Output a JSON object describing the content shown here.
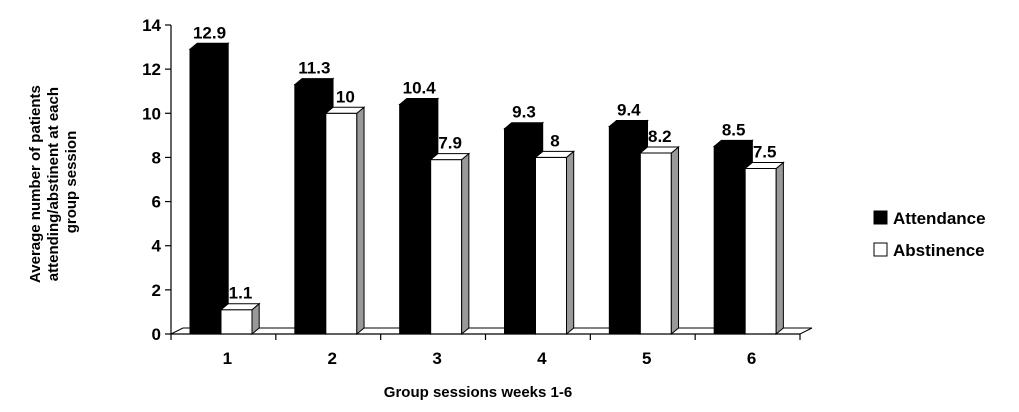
{
  "chart_data": {
    "type": "bar",
    "title": "",
    "xlabel": "Group sessions weeks 1-6",
    "ylabel_lines": [
      "Average number of patients",
      "attending/abstinent at each",
      "group session"
    ],
    "categories": [
      "1",
      "2",
      "3",
      "4",
      "5",
      "6"
    ],
    "ylim": [
      0,
      14
    ],
    "yticks": [
      "0",
      "2",
      "4",
      "6",
      "8",
      "10",
      "12",
      "14"
    ],
    "grid": false,
    "legend_position": "right",
    "series": [
      {
        "name": "Attendance",
        "values": [
          12.9,
          11.3,
          10.4,
          9.3,
          9.4,
          8.5
        ],
        "labels": [
          "12.9",
          "11.3",
          "10.4",
          "9.3",
          "9.4",
          "8.5"
        ],
        "color": "#000000"
      },
      {
        "name": "Abstinence",
        "values": [
          1.1,
          10,
          7.9,
          8,
          8.2,
          7.5
        ],
        "labels": [
          "1.1",
          "10",
          "7.9",
          "8",
          "8.2",
          "7.5"
        ],
        "color": "#ffffff"
      }
    ]
  }
}
